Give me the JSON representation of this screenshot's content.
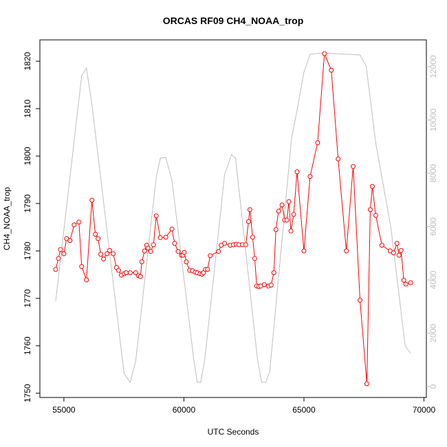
{
  "chart_data": {
    "type": "line",
    "title": "ORCAS RF09 CH4_NOAA_trop",
    "x_label": "UTC Seconds",
    "y_label": "CH4_NOAA_trop",
    "xlim": [
      54000,
      70100
    ],
    "xticks": [
      55000,
      60000,
      65000,
      70000
    ],
    "ylim": [
      1749.1,
      1824.5
    ],
    "yticks": [
      1750,
      1760,
      1770,
      1780,
      1790,
      1800,
      1810,
      1820
    ],
    "y2lim": [
      -413,
      13006
    ],
    "y2ticks": [
      0,
      2000,
      4000,
      6000,
      8000,
      10000,
      12000
    ],
    "series": [
      {
        "color": "#ff0000",
        "marker": "circle",
        "x": [
          54658,
          54772,
          54858,
          55000,
          55114,
          55256,
          55427,
          55627,
          55741,
          55940,
          56168,
          56311,
          56425,
          56538,
          56652,
          56795,
          56909,
          57051,
          57194,
          57279,
          57393,
          57507,
          57593,
          57764,
          57991,
          58105,
          58191,
          58248,
          58362,
          58447,
          58504,
          58618,
          58732,
          58846,
          59017,
          59245,
          59501,
          59615,
          59758,
          59900,
          59957,
          60014,
          60100,
          60242,
          60356,
          60470,
          60556,
          60670,
          60755,
          60812,
          60897,
          60983,
          61097,
          61439,
          61553,
          61695,
          61923,
          62066,
          62180,
          62294,
          62436,
          62578,
          62692,
          62749,
          62863,
          62949,
          63034,
          63120,
          63205,
          63348,
          63519,
          63632,
          63746,
          63832,
          63946,
          64088,
          64202,
          64288,
          64373,
          64459,
          64573,
          64715,
          65000,
          65256,
          65570,
          65855,
          66140,
          66425,
          66766,
          67051,
          67336,
          67621,
          67764,
          67849,
          67991,
          68248,
          68590,
          68732,
          68875,
          68960,
          69046,
          69160,
          69245,
          69444
        ],
        "values": [
          1776.1,
          1778.4,
          1780.3,
          1779.4,
          1782.6,
          1782.2,
          1785.5,
          1786.1,
          1776.7,
          1773.9,
          1790.7,
          1783.5,
          1782.6,
          1779.3,
          1778.3,
          1779.4,
          1780.1,
          1779.4,
          1776.5,
          1775.9,
          1774.9,
          1775.2,
          1775.4,
          1775.4,
          1775.4,
          1774.8,
          1774.6,
          1777.7,
          1780.0,
          1781.2,
          1780.6,
          1779.9,
          1781.3,
          1787.4,
          1782.8,
          1782.9,
          1784.6,
          1781.6,
          1779.9,
          1779.1,
          1779.1,
          1779.7,
          1777.7,
          1775.9,
          1775.8,
          1775.5,
          1775.4,
          1775.2,
          1775.1,
          1775.4,
          1776.1,
          1776.1,
          1779.0,
          1779.9,
          1781.2,
          1781.6,
          1781.2,
          1781.3,
          1781.4,
          1781.3,
          1781.3,
          1781.3,
          1786.2,
          1788.7,
          1782.9,
          1778.4,
          1772.6,
          1772.5,
          1772.6,
          1772.9,
          1772.6,
          1772.8,
          1775.4,
          1784.5,
          1788.4,
          1789.7,
          1786.5,
          1786.5,
          1790.4,
          1784.2,
          1787.7,
          1796.7,
          1780.0,
          1795.7,
          1802.8,
          1821.6,
          1818.1,
          1799.4,
          1780.0,
          1797.8,
          1769.6,
          1752.0,
          1788.7,
          1793.6,
          1787.5,
          1781.2,
          1780.0,
          1779.6,
          1781.6,
          1779.1,
          1780.1,
          1773.8,
          1773.0,
          1773.3
        ]
      },
      {
        "color": "#bebebe",
        "axis": "y2",
        "x": [
          54658,
          55741,
          55940,
          56168,
          57222,
          57507,
          57764,
          57991,
          58846,
          59017,
          59245,
          59501,
          60413,
          60556,
          60698,
          60869,
          61695,
          61980,
          62151,
          63063,
          63234,
          63405,
          63575,
          64487,
          64715,
          65000,
          65256,
          65769,
          67336,
          67593,
          67991,
          68618,
          69217,
          69444
        ],
        "values": [
          3200,
          11665,
          11948,
          10581,
          2632,
          490,
          155,
          955,
          7845,
          8568,
          8594,
          7742,
          1006,
          155,
          155,
          1006,
          7948,
          8697,
          8568,
          1032,
          155,
          155,
          568,
          9342,
          10374,
          11794,
          12465,
          12516,
          12439,
          12026,
          9135,
          5987,
          1523,
          1239
        ]
      }
    ]
  }
}
